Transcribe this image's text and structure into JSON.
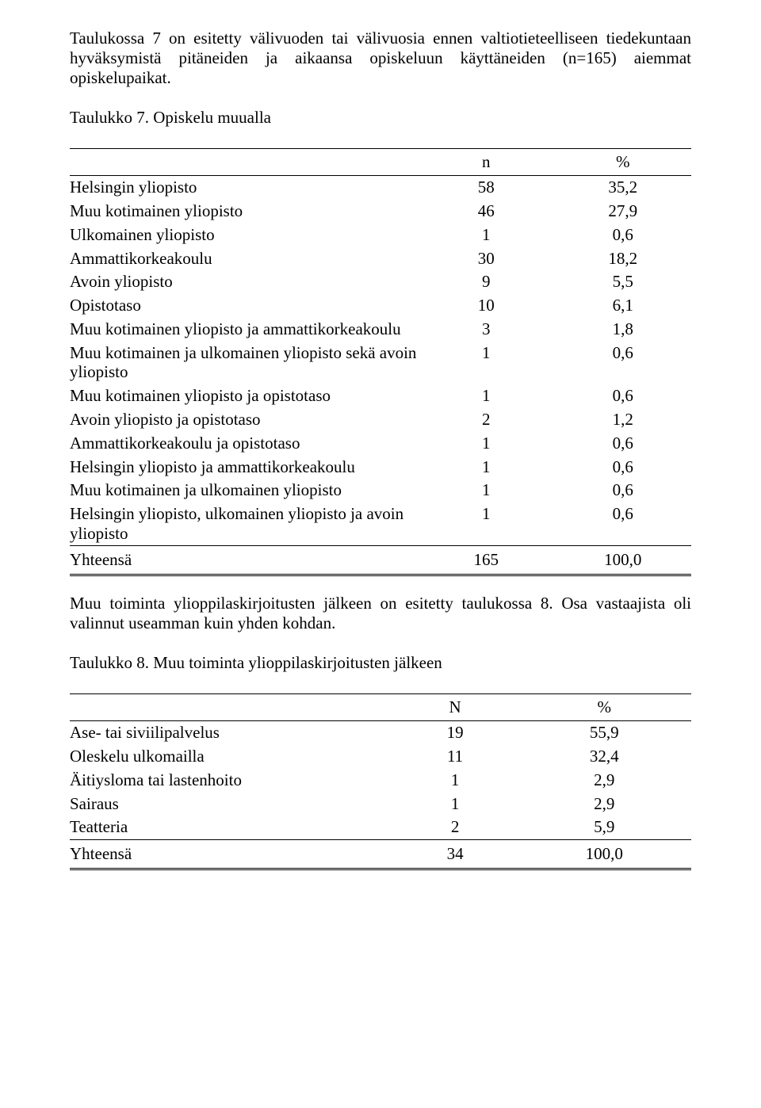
{
  "intro": "Taulukossa 7 on esitetty välivuoden tai välivuosia ennen valtiotieteelliseen tiedekuntaan hyväksymistä pitäneiden ja aikaansa opiskeluun käyttäneiden (n=165) aiemmat opiskelupaikat.",
  "table7": {
    "caption": "Taulukko 7. Opiskelu muualla",
    "header_n": "n",
    "header_p": "%",
    "rows": [
      {
        "label": "Helsingin yliopisto",
        "n": "58",
        "p": "35,2"
      },
      {
        "label": "Muu kotimainen yliopisto",
        "n": "46",
        "p": "27,9"
      },
      {
        "label": "Ulkomainen yliopisto",
        "n": "1",
        "p": "0,6"
      },
      {
        "label": "Ammattikorkeakoulu",
        "n": "30",
        "p": "18,2"
      },
      {
        "label": "Avoin yliopisto",
        "n": "9",
        "p": "5,5"
      },
      {
        "label": "Opistotaso",
        "n": "10",
        "p": "6,1"
      },
      {
        "label": "Muu kotimainen yliopisto ja ammattikorkeakoulu",
        "n": "3",
        "p": "1,8"
      },
      {
        "label": "Muu kotimainen ja ulkomainen yliopisto sekä avoin yliopisto",
        "n": "1",
        "p": "0,6"
      },
      {
        "label": "Muu kotimainen yliopisto ja opistotaso",
        "n": "1",
        "p": "0,6"
      },
      {
        "label": "Avoin yliopisto ja opistotaso",
        "n": "2",
        "p": "1,2"
      },
      {
        "label": "Ammattikorkeakoulu ja opistotaso",
        "n": "1",
        "p": "0,6"
      },
      {
        "label": "Helsingin yliopisto ja ammattikorkeakoulu",
        "n": "1",
        "p": "0,6"
      },
      {
        "label": "Muu kotimainen ja ulkomainen yliopisto",
        "n": "1",
        "p": "0,6"
      },
      {
        "label": "Helsingin yliopisto, ulkomainen yliopisto ja avoin yliopisto",
        "n": "1",
        "p": "0,6"
      }
    ],
    "total": {
      "label": "Yhteensä",
      "n": "165",
      "p": "100,0"
    }
  },
  "mid": "Muu toiminta ylioppilaskirjoitusten jälkeen on esitetty taulukossa 8. Osa vastaajista oli valinnut useamman kuin yhden kohdan.",
  "table8": {
    "caption": "Taulukko 8. Muu toiminta ylioppilaskirjoitusten jälkeen",
    "header_n": "N",
    "header_p": "%",
    "rows": [
      {
        "label": "Ase- tai siviilipalvelus",
        "n": "19",
        "p": "55,9"
      },
      {
        "label": "Oleskelu ulkomailla",
        "n": "11",
        "p": "32,4"
      },
      {
        "label": "Äitiysloma tai lastenhoito",
        "n": "1",
        "p": "2,9"
      },
      {
        "label": "Sairaus",
        "n": "1",
        "p": "2,9"
      },
      {
        "label": "Teatteria",
        "n": "2",
        "p": "5,9"
      }
    ],
    "total": {
      "label": "Yhteensä",
      "n": "34",
      "p": "100,0"
    }
  }
}
